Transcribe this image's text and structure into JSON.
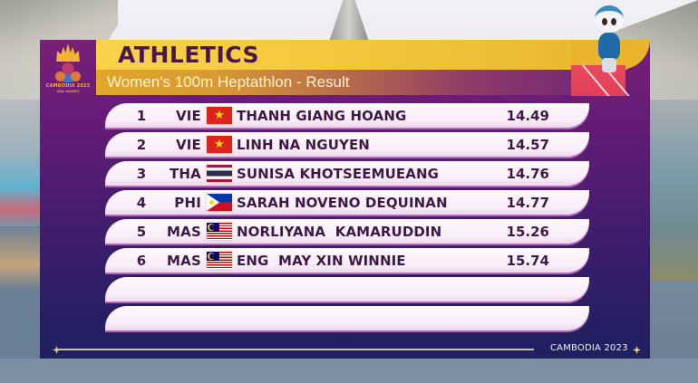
{
  "header": {
    "logo": {
      "label": "CAMBODIA 2023",
      "sub": "SEA GAMES"
    },
    "title": "ATHLETICS",
    "subtitle": "Women's 100m Heptathlon - Result"
  },
  "results": [
    {
      "rank": "1",
      "nation": "VIE",
      "flag": "vietnam-flag",
      "name": "THANH GIANG HOANG",
      "time": "14.49"
    },
    {
      "rank": "2",
      "nation": "VIE",
      "flag": "vietnam-flag",
      "name": "LINH NA NGUYEN",
      "time": "14.57"
    },
    {
      "rank": "3",
      "nation": "THA",
      "flag": "thailand-flag",
      "name": "SUNISA KHOTSEEMUEANG",
      "time": "14.76"
    },
    {
      "rank": "4",
      "nation": "PHI",
      "flag": "philippines-flag",
      "name": "SARAH NOVENO DEQUINAN",
      "time": "14.77"
    },
    {
      "rank": "5",
      "nation": "MAS",
      "flag": "malaysia-flag",
      "name": "NORLIYANA  KAMARUDDIN",
      "time": "15.26"
    },
    {
      "rank": "6",
      "nation": "MAS",
      "flag": "malaysia-flag",
      "name": "ENG  MAY XIN WINNIE",
      "time": "15.74"
    },
    {
      "rank": "",
      "nation": "",
      "flag": "",
      "name": "",
      "time": ""
    },
    {
      "rank": "",
      "nation": "",
      "flag": "",
      "name": "",
      "time": ""
    }
  ],
  "flags": {
    "vietnam_star": "★"
  },
  "footer": {
    "text": "CAMBODIA 2023"
  },
  "colors": {
    "title_yellow": "#f2c63a",
    "title_text": "#4a1848",
    "panel_purple": "#5c1c74",
    "panel_navy": "#1e2060",
    "row_text": "#3d1a46"
  }
}
